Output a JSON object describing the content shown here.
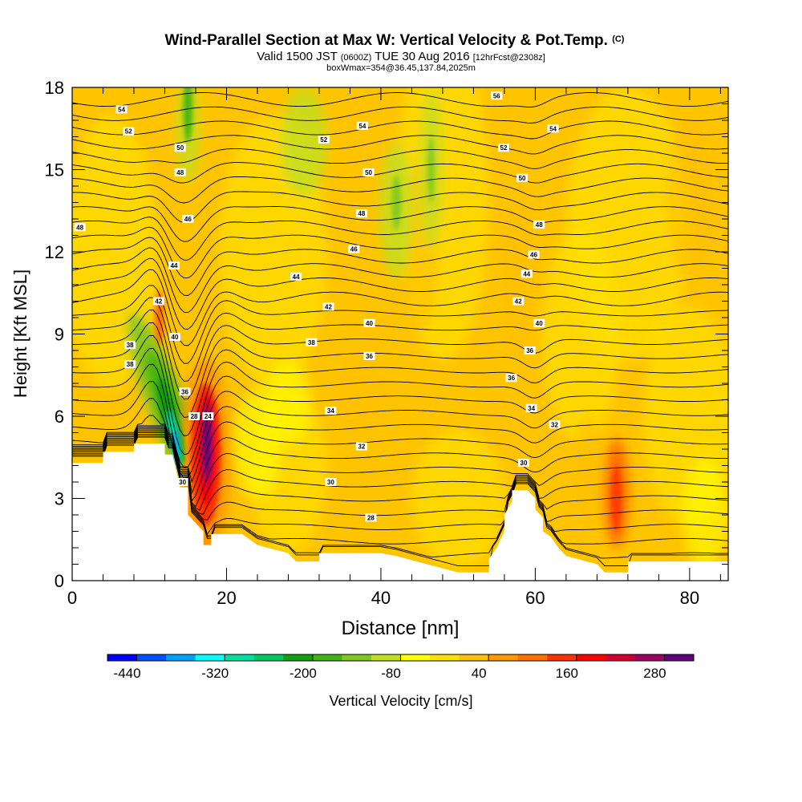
{
  "chart_data": {
    "type": "heatmap",
    "title": "Wind-Parallel Section at Max W: Vertical Velocity & Pot.Temp.",
    "title_mark": "(C)",
    "subtitle": {
      "prefix": "Valid 1500 JST",
      "utc": "(0600Z)",
      "date": "TUE 30 Aug 2016",
      "forecast": "[12hrFcst@2308z]"
    },
    "subtitle2": "boxWmax=354@36.45,137.84,2025m",
    "xlabel": "Distance [nm]",
    "ylabel": "Height [Kft MSL]",
    "xlim": [
      0,
      85
    ],
    "ylim": [
      0,
      18
    ],
    "xticks": [
      0,
      20,
      40,
      60,
      80
    ],
    "yticks": [
      0,
      3,
      6,
      9,
      12,
      15,
      18
    ],
    "colorbar": {
      "label": "Vertical Velocity [cm/s]",
      "levels": [
        -440,
        -400,
        -360,
        -320,
        -280,
        -240,
        -200,
        -160,
        -120,
        -80,
        -40,
        0,
        40,
        80,
        120,
        160,
        200,
        240,
        280,
        320
      ],
      "colors": [
        "#0000ff",
        "#0050ff",
        "#00a0ff",
        "#00ffff",
        "#00e0a0",
        "#00c860",
        "#10a010",
        "#40b410",
        "#80c820",
        "#c0e020",
        "#ffff00",
        "#ffe000",
        "#ffc000",
        "#ff9800",
        "#ff7000",
        "#ff3000",
        "#ff0000",
        "#d00030",
        "#a00060",
        "#600080"
      ],
      "tick_labels": [
        "-440",
        "-320",
        "-200",
        "-80",
        "40",
        "160",
        "280"
      ]
    },
    "terrain_height_kft": [
      [
        0,
        4.3
      ],
      [
        4,
        4.3
      ],
      [
        4,
        4.7
      ],
      [
        8,
        4.7
      ],
      [
        8,
        5.0
      ],
      [
        12,
        5.0
      ],
      [
        12,
        4.6
      ],
      [
        13,
        4.6
      ],
      [
        14,
        3.4
      ],
      [
        15,
        3.4
      ],
      [
        15,
        2.4
      ],
      [
        17,
        1.8
      ],
      [
        17,
        1.3
      ],
      [
        18,
        1.3
      ],
      [
        18,
        1.7
      ],
      [
        22,
        1.7
      ],
      [
        24,
        1.3
      ],
      [
        28,
        1.0
      ],
      [
        29,
        0.7
      ],
      [
        32,
        0.7
      ],
      [
        32,
        1.0
      ],
      [
        40,
        1.0
      ],
      [
        42,
        0.9
      ],
      [
        46,
        0.6
      ],
      [
        50,
        0.3
      ],
      [
        54,
        0.3
      ],
      [
        54,
        0.8
      ],
      [
        55,
        1.2
      ],
      [
        56,
        1.8
      ],
      [
        56,
        2.4
      ],
      [
        57,
        2.9
      ],
      [
        57,
        3.3
      ],
      [
        59,
        3.3
      ],
      [
        60,
        3.0
      ],
      [
        60,
        2.6
      ],
      [
        61,
        2.3
      ],
      [
        61,
        1.8
      ],
      [
        62,
        1.6
      ],
      [
        63,
        1.2
      ],
      [
        64,
        0.9
      ],
      [
        68,
        0.6
      ],
      [
        69,
        0.3
      ],
      [
        72,
        0.3
      ],
      [
        72,
        0.7
      ],
      [
        85,
        0.7
      ]
    ],
    "theta_contour_labels": [
      {
        "text": "54",
        "x": 6.4,
        "y": 17.2
      },
      {
        "text": "52",
        "x": 7.3,
        "y": 16.4
      },
      {
        "text": "50",
        "x": 14.0,
        "y": 15.8
      },
      {
        "text": "48",
        "x": 14.0,
        "y": 14.9
      },
      {
        "text": "46",
        "x": 15.0,
        "y": 13.2
      },
      {
        "text": "48",
        "x": 1.0,
        "y": 12.9
      },
      {
        "text": "44",
        "x": 13.2,
        "y": 11.5
      },
      {
        "text": "42",
        "x": 11.2,
        "y": 10.2
      },
      {
        "text": "40",
        "x": 13.3,
        "y": 8.9
      },
      {
        "text": "38",
        "x": 7.5,
        "y": 8.6
      },
      {
        "text": "38",
        "x": 7.5,
        "y": 7.9
      },
      {
        "text": "36",
        "x": 14.6,
        "y": 6.9
      },
      {
        "text": "28",
        "x": 15.8,
        "y": 6.0
      },
      {
        "text": "24",
        "x": 17.6,
        "y": 6.0
      },
      {
        "text": "30",
        "x": 14.3,
        "y": 3.6
      },
      {
        "text": "56",
        "x": 55.0,
        "y": 17.7
      },
      {
        "text": "54",
        "x": 37.6,
        "y": 16.6
      },
      {
        "text": "54",
        "x": 62.3,
        "y": 16.5
      },
      {
        "text": "52",
        "x": 32.6,
        "y": 16.1
      },
      {
        "text": "52",
        "x": 55.9,
        "y": 15.8
      },
      {
        "text": "50",
        "x": 38.4,
        "y": 14.9
      },
      {
        "text": "50",
        "x": 58.3,
        "y": 14.7
      },
      {
        "text": "48",
        "x": 37.5,
        "y": 13.4
      },
      {
        "text": "48",
        "x": 60.5,
        "y": 13.0
      },
      {
        "text": "46",
        "x": 36.5,
        "y": 12.1
      },
      {
        "text": "46",
        "x": 59.8,
        "y": 11.9
      },
      {
        "text": "44",
        "x": 29.0,
        "y": 11.1
      },
      {
        "text": "44",
        "x": 58.9,
        "y": 11.2
      },
      {
        "text": "42",
        "x": 33.2,
        "y": 10.0
      },
      {
        "text": "42",
        "x": 57.8,
        "y": 10.2
      },
      {
        "text": "40",
        "x": 38.5,
        "y": 9.4
      },
      {
        "text": "40",
        "x": 60.5,
        "y": 9.4
      },
      {
        "text": "38",
        "x": 31.0,
        "y": 8.7
      },
      {
        "text": "36",
        "x": 38.5,
        "y": 8.2
      },
      {
        "text": "36",
        "x": 59.3,
        "y": 8.4
      },
      {
        "text": "36",
        "x": 56.9,
        "y": 7.4
      },
      {
        "text": "34",
        "x": 33.5,
        "y": 6.2
      },
      {
        "text": "34",
        "x": 59.5,
        "y": 6.3
      },
      {
        "text": "32",
        "x": 37.5,
        "y": 4.9
      },
      {
        "text": "32",
        "x": 62.5,
        "y": 5.7
      },
      {
        "text": "30",
        "x": 33.5,
        "y": 3.6
      },
      {
        "text": "30",
        "x": 58.5,
        "y": 4.3
      },
      {
        "text": "28",
        "x": 38.7,
        "y": 2.3
      }
    ]
  }
}
